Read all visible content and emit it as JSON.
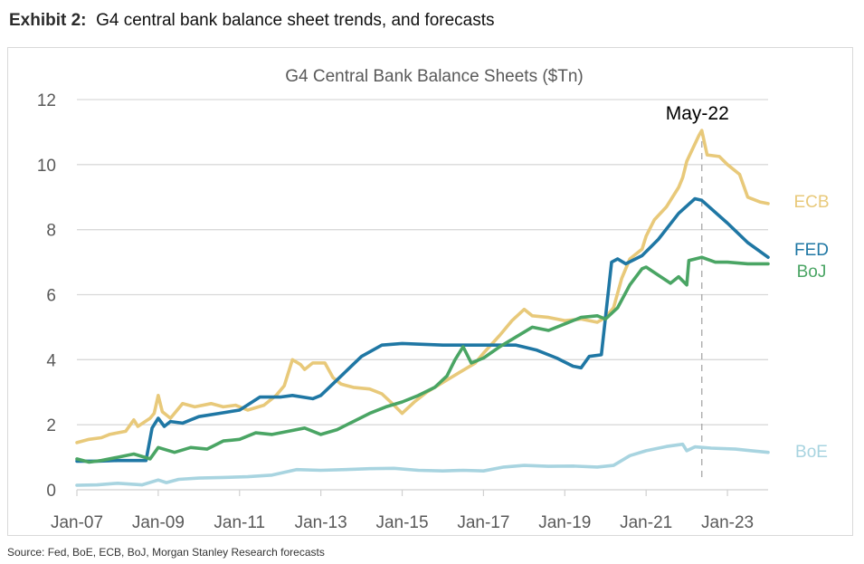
{
  "exhibit": {
    "label": "Exhibit 2:",
    "title": "G4 central bank balance sheet trends, and forecasts"
  },
  "source": "Source: Fed, BoE, ECB, BoJ, Morgan Stanley Research forecasts",
  "chart_data": {
    "type": "line",
    "title": "G4 Central Bank Balance Sheets ($Tn)",
    "xlabel": "",
    "ylabel": "",
    "xlim": [
      2007.0,
      2024.0
    ],
    "ylim": [
      0,
      12
    ],
    "yticks": [
      0,
      2,
      4,
      6,
      8,
      10,
      12
    ],
    "xtick_values": [
      2007,
      2009,
      2011,
      2013,
      2015,
      2017,
      2019,
      2021,
      2023
    ],
    "xtick_labels": [
      "Jan-07",
      "Jan-09",
      "Jan-11",
      "Jan-13",
      "Jan-15",
      "Jan-17",
      "Jan-19",
      "Jan-21",
      "Jan-23"
    ],
    "grid": true,
    "legend": "inline-right",
    "annotations": [
      {
        "text": "May-22",
        "x": 2022.37,
        "style": "dashed-vertical-line"
      }
    ],
    "series": [
      {
        "name": "ECB",
        "color": "#E8C97A",
        "points": [
          [
            2007.0,
            1.45
          ],
          [
            2007.3,
            1.55
          ],
          [
            2007.6,
            1.6
          ],
          [
            2007.8,
            1.7
          ],
          [
            2008.0,
            1.75
          ],
          [
            2008.2,
            1.8
          ],
          [
            2008.4,
            2.15
          ],
          [
            2008.5,
            1.95
          ],
          [
            2008.8,
            2.2
          ],
          [
            2008.9,
            2.35
          ],
          [
            2009.0,
            2.9
          ],
          [
            2009.1,
            2.4
          ],
          [
            2009.3,
            2.2
          ],
          [
            2009.6,
            2.65
          ],
          [
            2009.9,
            2.55
          ],
          [
            2010.3,
            2.65
          ],
          [
            2010.6,
            2.55
          ],
          [
            2010.9,
            2.6
          ],
          [
            2011.2,
            2.45
          ],
          [
            2011.6,
            2.6
          ],
          [
            2011.9,
            2.9
          ],
          [
            2012.1,
            3.2
          ],
          [
            2012.3,
            4.0
          ],
          [
            2012.5,
            3.85
          ],
          [
            2012.6,
            3.7
          ],
          [
            2012.8,
            3.9
          ],
          [
            2013.1,
            3.9
          ],
          [
            2013.3,
            3.45
          ],
          [
            2013.5,
            3.25
          ],
          [
            2013.8,
            3.15
          ],
          [
            2014.2,
            3.1
          ],
          [
            2014.5,
            2.95
          ],
          [
            2014.8,
            2.6
          ],
          [
            2015.0,
            2.35
          ],
          [
            2015.3,
            2.7
          ],
          [
            2015.6,
            3.0
          ],
          [
            2016.0,
            3.3
          ],
          [
            2016.4,
            3.6
          ],
          [
            2016.8,
            3.9
          ],
          [
            2017.0,
            4.2
          ],
          [
            2017.4,
            4.75
          ],
          [
            2017.7,
            5.2
          ],
          [
            2018.0,
            5.55
          ],
          [
            2018.2,
            5.35
          ],
          [
            2018.6,
            5.3
          ],
          [
            2019.0,
            5.2
          ],
          [
            2019.4,
            5.25
          ],
          [
            2019.8,
            5.15
          ],
          [
            2020.0,
            5.3
          ],
          [
            2020.2,
            5.6
          ],
          [
            2020.4,
            6.5
          ],
          [
            2020.6,
            7.1
          ],
          [
            2020.9,
            7.4
          ],
          [
            2021.0,
            7.8
          ],
          [
            2021.2,
            8.3
          ],
          [
            2021.5,
            8.7
          ],
          [
            2021.8,
            9.3
          ],
          [
            2021.9,
            9.6
          ],
          [
            2022.0,
            10.1
          ],
          [
            2022.3,
            10.9
          ],
          [
            2022.37,
            11.05
          ],
          [
            2022.5,
            10.3
          ],
          [
            2022.8,
            10.25
          ],
          [
            2023.0,
            10.0
          ],
          [
            2023.3,
            9.7
          ],
          [
            2023.5,
            9.0
          ],
          [
            2023.8,
            8.85
          ],
          [
            2024.0,
            8.8
          ]
        ]
      },
      {
        "name": "FED",
        "color": "#1F77A4",
        "points": [
          [
            2007.0,
            0.88
          ],
          [
            2007.5,
            0.88
          ],
          [
            2008.0,
            0.9
          ],
          [
            2008.7,
            0.9
          ],
          [
            2008.85,
            1.9
          ],
          [
            2009.0,
            2.2
          ],
          [
            2009.15,
            1.95
          ],
          [
            2009.3,
            2.1
          ],
          [
            2009.6,
            2.05
          ],
          [
            2010.0,
            2.25
          ],
          [
            2010.5,
            2.35
          ],
          [
            2011.0,
            2.45
          ],
          [
            2011.5,
            2.85
          ],
          [
            2012.0,
            2.85
          ],
          [
            2012.3,
            2.9
          ],
          [
            2012.8,
            2.8
          ],
          [
            2013.0,
            2.9
          ],
          [
            2013.5,
            3.5
          ],
          [
            2014.0,
            4.1
          ],
          [
            2014.5,
            4.45
          ],
          [
            2015.0,
            4.5
          ],
          [
            2016.0,
            4.45
          ],
          [
            2017.0,
            4.45
          ],
          [
            2017.8,
            4.45
          ],
          [
            2018.3,
            4.3
          ],
          [
            2018.8,
            4.05
          ],
          [
            2019.2,
            3.8
          ],
          [
            2019.4,
            3.75
          ],
          [
            2019.6,
            4.1
          ],
          [
            2019.9,
            4.15
          ],
          [
            2020.15,
            7.0
          ],
          [
            2020.3,
            7.1
          ],
          [
            2020.5,
            6.95
          ],
          [
            2020.9,
            7.2
          ],
          [
            2021.3,
            7.7
          ],
          [
            2021.8,
            8.5
          ],
          [
            2022.2,
            8.95
          ],
          [
            2022.37,
            8.9
          ],
          [
            2023.0,
            8.2
          ],
          [
            2023.5,
            7.6
          ],
          [
            2024.0,
            7.15
          ]
        ]
      },
      {
        "name": "BoJ",
        "color": "#4AA564",
        "points": [
          [
            2007.0,
            0.95
          ],
          [
            2007.3,
            0.85
          ],
          [
            2007.6,
            0.9
          ],
          [
            2008.0,
            1.0
          ],
          [
            2008.4,
            1.1
          ],
          [
            2008.8,
            0.95
          ],
          [
            2009.0,
            1.3
          ],
          [
            2009.4,
            1.15
          ],
          [
            2009.8,
            1.3
          ],
          [
            2010.2,
            1.25
          ],
          [
            2010.6,
            1.5
          ],
          [
            2011.0,
            1.55
          ],
          [
            2011.4,
            1.75
          ],
          [
            2011.8,
            1.7
          ],
          [
            2012.2,
            1.8
          ],
          [
            2012.6,
            1.9
          ],
          [
            2013.0,
            1.7
          ],
          [
            2013.4,
            1.85
          ],
          [
            2013.8,
            2.1
          ],
          [
            2014.2,
            2.35
          ],
          [
            2014.6,
            2.55
          ],
          [
            2015.0,
            2.7
          ],
          [
            2015.4,
            2.9
          ],
          [
            2015.8,
            3.15
          ],
          [
            2016.1,
            3.5
          ],
          [
            2016.3,
            4.0
          ],
          [
            2016.5,
            4.4
          ],
          [
            2016.7,
            3.9
          ],
          [
            2017.0,
            4.05
          ],
          [
            2017.4,
            4.4
          ],
          [
            2017.8,
            4.7
          ],
          [
            2018.2,
            5.0
          ],
          [
            2018.6,
            4.9
          ],
          [
            2019.0,
            5.1
          ],
          [
            2019.4,
            5.3
          ],
          [
            2019.8,
            5.35
          ],
          [
            2020.0,
            5.25
          ],
          [
            2020.3,
            5.6
          ],
          [
            2020.6,
            6.3
          ],
          [
            2020.9,
            6.8
          ],
          [
            2021.0,
            6.85
          ],
          [
            2021.3,
            6.6
          ],
          [
            2021.6,
            6.35
          ],
          [
            2021.8,
            6.55
          ],
          [
            2022.0,
            6.3
          ],
          [
            2022.05,
            7.05
          ],
          [
            2022.37,
            7.15
          ],
          [
            2022.7,
            7.0
          ],
          [
            2023.0,
            7.0
          ],
          [
            2023.5,
            6.95
          ],
          [
            2024.0,
            6.95
          ]
        ]
      },
      {
        "name": "BoE",
        "color": "#A8D4E0",
        "points": [
          [
            2007.0,
            0.14
          ],
          [
            2007.5,
            0.15
          ],
          [
            2008.0,
            0.2
          ],
          [
            2008.6,
            0.15
          ],
          [
            2009.0,
            0.3
          ],
          [
            2009.2,
            0.22
          ],
          [
            2009.5,
            0.32
          ],
          [
            2010.0,
            0.36
          ],
          [
            2010.6,
            0.38
          ],
          [
            2011.2,
            0.4
          ],
          [
            2011.8,
            0.45
          ],
          [
            2012.4,
            0.62
          ],
          [
            2013.0,
            0.6
          ],
          [
            2013.6,
            0.62
          ],
          [
            2014.2,
            0.65
          ],
          [
            2014.8,
            0.66
          ],
          [
            2015.4,
            0.6
          ],
          [
            2016.0,
            0.58
          ],
          [
            2016.5,
            0.6
          ],
          [
            2017.0,
            0.58
          ],
          [
            2017.5,
            0.7
          ],
          [
            2018.0,
            0.75
          ],
          [
            2018.6,
            0.72
          ],
          [
            2019.2,
            0.73
          ],
          [
            2019.8,
            0.7
          ],
          [
            2020.2,
            0.75
          ],
          [
            2020.6,
            1.05
          ],
          [
            2021.0,
            1.2
          ],
          [
            2021.5,
            1.33
          ],
          [
            2021.9,
            1.4
          ],
          [
            2022.0,
            1.2
          ],
          [
            2022.2,
            1.32
          ],
          [
            2022.6,
            1.28
          ],
          [
            2023.2,
            1.25
          ],
          [
            2023.6,
            1.2
          ],
          [
            2024.0,
            1.15
          ]
        ]
      }
    ]
  }
}
